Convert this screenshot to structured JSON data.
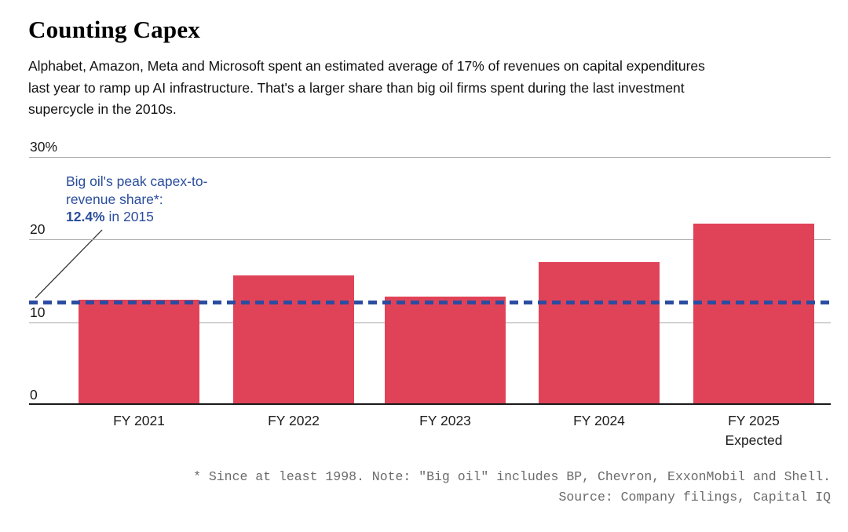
{
  "header": {
    "title": "Counting Capex",
    "subtitle_lines": [
      "Alphabet, Amazon, Meta and Microsoft spent an estimated average of 17% of revenues on capital expenditures",
      "last year to ramp up AI infrastructure. That's a larger share than big oil firms spent during the last investment",
      "supercycle in the 2010s."
    ]
  },
  "chart_data": {
    "type": "bar",
    "categories": [
      {
        "label": "FY 2021"
      },
      {
        "label": "FY 2022"
      },
      {
        "label": "FY 2023"
      },
      {
        "label": "FY 2024"
      },
      {
        "label": "FY 2025",
        "sublabel": "Expected"
      }
    ],
    "values": [
      12.7,
      15.7,
      13.1,
      17.3,
      21.9
    ],
    "ylim": [
      0,
      30
    ],
    "yticks": [
      {
        "value": 30,
        "label": "30%"
      },
      {
        "value": 20,
        "label": "20"
      },
      {
        "value": 10,
        "label": "10"
      },
      {
        "value": 0,
        "label": "0"
      }
    ],
    "grid": "horizontal",
    "bar_color": "#e04358",
    "reference_line": {
      "value": 12.4,
      "style": "dashed",
      "color": "#2b4da1"
    },
    "annotation": {
      "line1": "Big oil's peak capex-to-",
      "line2": "revenue share*:",
      "bold": "12.4%",
      "rest": " in 2015",
      "color": "#2a4d9c"
    }
  },
  "footnote": {
    "line1": "* Since at least 1998. Note: \"Big oil\" includes BP, Chevron, ExxonMobil and Shell.",
    "line2": "Source: Company filings, Capital IQ"
  }
}
